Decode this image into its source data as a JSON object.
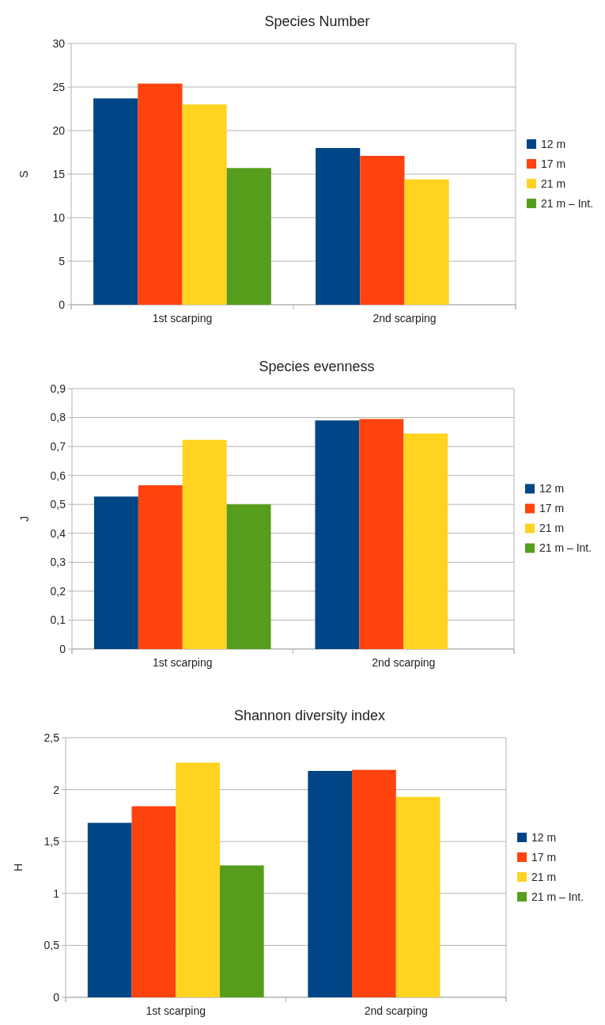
{
  "chart_data": [
    {
      "type": "bar",
      "title": "Species Number",
      "ylabel": "S",
      "categories": [
        "1st scarping",
        "2nd scarping"
      ],
      "series": [
        {
          "name": "12 m",
          "color": "#004586",
          "values": [
            23.7,
            18.0
          ]
        },
        {
          "name": "17 m",
          "color": "#ff420e",
          "values": [
            25.4,
            17.1
          ]
        },
        {
          "name": "21 m",
          "color": "#ffd320",
          "values": [
            23.0,
            14.4
          ]
        },
        {
          "name": "21 m – Int.",
          "color": "#579d1c",
          "values": [
            15.7,
            null
          ]
        }
      ],
      "ylim": [
        0,
        30
      ],
      "yticks": [
        0,
        5,
        10,
        15,
        20,
        25,
        30
      ],
      "grid": "y",
      "legend": "right"
    },
    {
      "type": "bar",
      "title": "Species evenness",
      "ylabel": "J",
      "categories": [
        "1st scarping",
        "2nd scarping"
      ],
      "series": [
        {
          "name": "12 m",
          "color": "#004586",
          "values": [
            0.527,
            0.79
          ]
        },
        {
          "name": "17 m",
          "color": "#ff420e",
          "values": [
            0.566,
            0.795
          ]
        },
        {
          "name": "21 m",
          "color": "#ffd320",
          "values": [
            0.723,
            0.745
          ]
        },
        {
          "name": "21 m – Int.",
          "color": "#579d1c",
          "values": [
            0.5,
            null
          ]
        }
      ],
      "ylim": [
        0,
        0.9
      ],
      "yticks": [
        0,
        {
          "value": 0.1,
          "label": "0,1"
        },
        {
          "value": 0.2,
          "label": "0,2"
        },
        {
          "value": 0.3,
          "label": "0,3"
        },
        {
          "value": 0.4,
          "label": "0,4"
        },
        {
          "value": 0.5,
          "label": "0,5"
        },
        {
          "value": 0.6,
          "label": "0,6"
        },
        {
          "value": 0.7,
          "label": "0,7"
        },
        {
          "value": 0.8,
          "label": "0,8"
        },
        {
          "value": 0.9,
          "label": "0,9"
        }
      ],
      "grid": "y",
      "legend": "right"
    },
    {
      "type": "bar",
      "title": "Shannon diversity index",
      "ylabel": "H",
      "categories": [
        "1st scarping",
        "2nd scarping"
      ],
      "series": [
        {
          "name": "12 m",
          "color": "#004586",
          "values": [
            1.68,
            2.18
          ]
        },
        {
          "name": "17 m",
          "color": "#ff420e",
          "values": [
            1.84,
            2.19
          ]
        },
        {
          "name": "21 m",
          "color": "#ffd320",
          "values": [
            2.26,
            1.93
          ]
        },
        {
          "name": "21 m – Int.",
          "color": "#579d1c",
          "values": [
            1.27,
            null
          ]
        }
      ],
      "ylim": [
        0,
        2.5
      ],
      "yticks": [
        0,
        {
          "value": 0.5,
          "label": "0,5"
        },
        1,
        {
          "value": 1.5,
          "label": "1,5"
        },
        2,
        {
          "value": 2.5,
          "label": "2,5"
        }
      ],
      "grid": "y",
      "legend": "right"
    }
  ]
}
